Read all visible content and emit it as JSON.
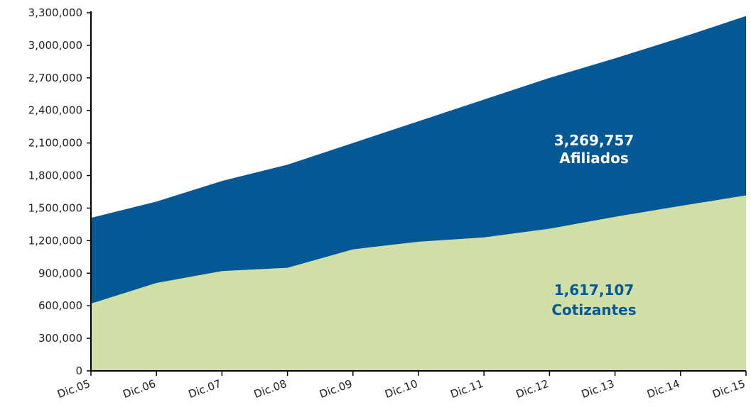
{
  "chart_data": {
    "type": "area",
    "categories": [
      "Dic.05",
      "Dic.06",
      "Dic.07",
      "Dic.08",
      "Dic.09",
      "Dic.10",
      "Dic.11",
      "Dic.12",
      "Dic.13",
      "Dic.14",
      "Dic.15"
    ],
    "series": [
      {
        "name": "Afiliados",
        "color": "#035895",
        "values": [
          1410000,
          1560000,
          1750000,
          1900000,
          2100000,
          2300000,
          2500000,
          2700000,
          2880000,
          3070000,
          3269757
        ]
      },
      {
        "name": "Cotizantes",
        "color": "#d0dfa5",
        "values": [
          620000,
          810000,
          920000,
          950000,
          1120000,
          1190000,
          1230000,
          1310000,
          1420000,
          1520000,
          1617107
        ]
      }
    ],
    "ylim": [
      0,
      3300000
    ],
    "yticks": [
      "0",
      "300,000",
      "600,000",
      "900,000",
      "1,200,000",
      "1,500,000",
      "1,800,000",
      "2,100,000",
      "2,400,000",
      "2,700,000",
      "3,000,000",
      "3,300,000"
    ],
    "ytick_values": [
      0,
      300000,
      600000,
      900000,
      1200000,
      1500000,
      1800000,
      2100000,
      2400000,
      2700000,
      3000000,
      3300000
    ],
    "annotations": [
      {
        "value": "3,269,757",
        "label": "Afiliados",
        "color": "#ffffff"
      },
      {
        "value": "1,617,107",
        "label": "Cotizantes",
        "color": "#035895"
      }
    ],
    "grid": false,
    "legend": "none"
  }
}
